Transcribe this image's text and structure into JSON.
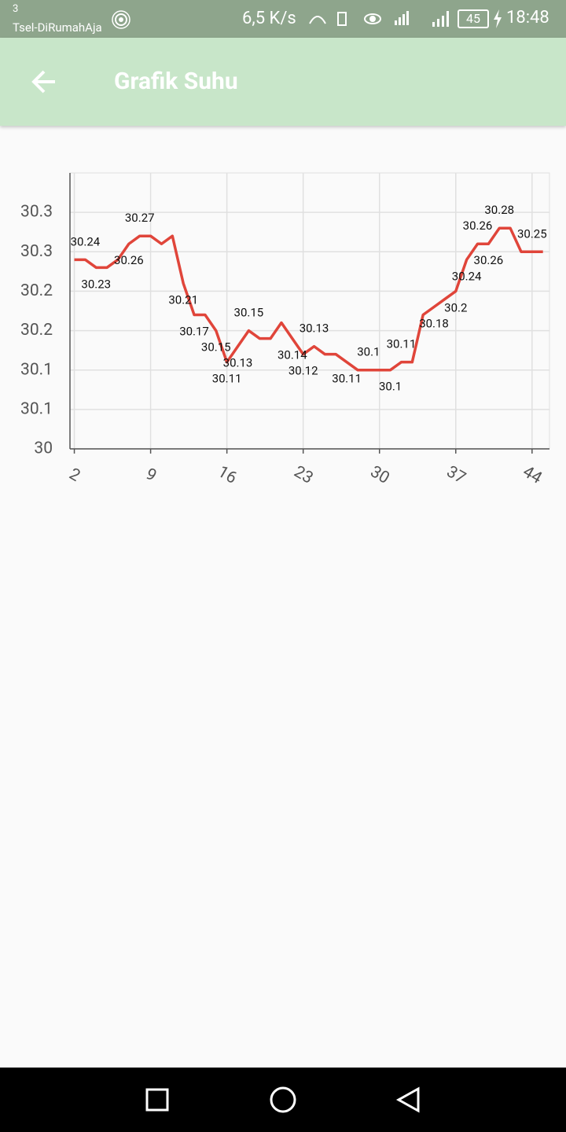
{
  "status_bar": {
    "sim": "3",
    "carrier": "Tsel-DiRumahAja",
    "speed": "6,5 K/s",
    "battery": "45",
    "time": "18:48"
  },
  "app_bar": {
    "title": "Grafik Suhu"
  },
  "chart_data": {
    "type": "line",
    "color": "#e0453a",
    "x": [
      2,
      3,
      4,
      5,
      6,
      7,
      8,
      9,
      10,
      11,
      12,
      13,
      14,
      15,
      16,
      17,
      18,
      19,
      20,
      21,
      22,
      23,
      24,
      25,
      26,
      27,
      28,
      29,
      30,
      31,
      32,
      33,
      34,
      35,
      36,
      37,
      38,
      39,
      40,
      41,
      42,
      43,
      44,
      45
    ],
    "values": [
      30.24,
      30.24,
      30.23,
      30.23,
      30.24,
      30.26,
      30.27,
      30.27,
      30.26,
      30.27,
      30.21,
      30.17,
      30.17,
      30.15,
      30.11,
      30.13,
      30.15,
      30.14,
      30.14,
      30.16,
      30.14,
      30.12,
      30.13,
      30.12,
      30.12,
      30.11,
      30.1,
      30.1,
      30.1,
      30.1,
      30.11,
      30.11,
      30.17,
      30.18,
      30.19,
      30.2,
      30.24,
      30.26,
      30.26,
      30.28,
      30.28,
      30.25,
      30.25,
      30.25
    ],
    "value_labels": [
      null,
      "30.24",
      "30.23",
      null,
      null,
      "30.26",
      "30.27",
      null,
      null,
      null,
      "30.21",
      "30.17",
      null,
      "30.15",
      "30.11",
      "30.13",
      "30.15",
      null,
      null,
      null,
      "30.14",
      "30.12",
      "30.13",
      null,
      null,
      "30.11",
      null,
      "30.1",
      null,
      "30.1",
      "30.11",
      null,
      null,
      "30.18",
      null,
      "30.2",
      "30.24",
      "30.26",
      "30.26",
      "30.28",
      null,
      null,
      "30.25",
      null
    ],
    "xlim": [
      1.6,
      45.6
    ],
    "xticks": [
      2,
      9,
      16,
      23,
      30,
      37,
      44
    ],
    "ylim": [
      30,
      30.35
    ],
    "yticks": [
      30,
      {
        "value": 30.05,
        "label": "30.1"
      },
      30.1,
      {
        "value": 30.15,
        "label": "30.2"
      },
      30.2,
      {
        "value": 30.25,
        "label": "30.3"
      },
      30.3
    ],
    "grid": true
  }
}
